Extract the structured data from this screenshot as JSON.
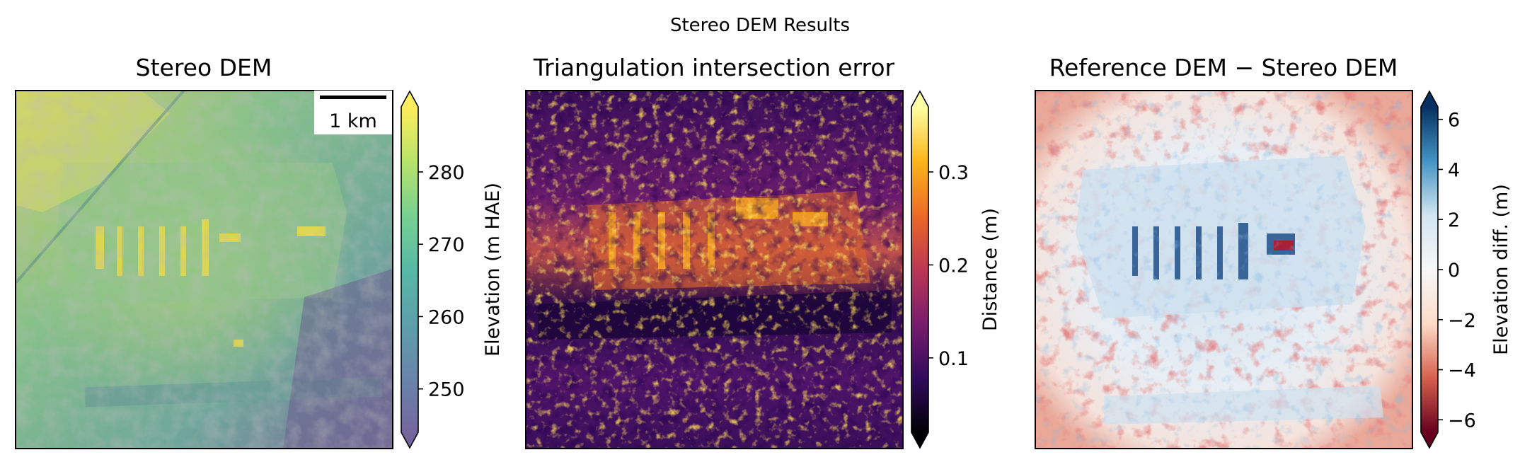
{
  "figure": {
    "suptitle": "Stereo DEM Results"
  },
  "chart_data": [
    {
      "type": "heatmap",
      "title": "Stereo DEM",
      "colormap": "viridis (hillshaded, semi-transparent)",
      "colorbar": {
        "label": "Elevation (m HAE)",
        "ticks": [
          250,
          260,
          270,
          280
        ],
        "range": [
          244,
          289
        ],
        "extend": "both",
        "colors": [
          "#46327e",
          "#365c8d",
          "#277f8e",
          "#1fa187",
          "#4ac16d",
          "#a0da39",
          "#fde725"
        ]
      },
      "scalebar": {
        "label": "1 km",
        "position": "top-right"
      },
      "grid": false
    },
    {
      "type": "heatmap",
      "title": "Triangulation intersection error",
      "colormap": "inferno",
      "colorbar": {
        "label": "Distance (m)",
        "ticks": [
          0.1,
          0.2,
          0.3
        ],
        "tick_labels": [
          "0.1",
          "0.2",
          "0.3"
        ],
        "range": [
          0.02,
          0.37
        ],
        "extend": "both",
        "colors": [
          "#000004",
          "#320a5e",
          "#781c6d",
          "#bc3754",
          "#ed6925",
          "#fbb61a",
          "#fcffa4"
        ]
      },
      "grid": false
    },
    {
      "type": "heatmap",
      "title": "Reference DEM − Stereo DEM",
      "colormap": "RdBu",
      "colorbar": {
        "label": "Elevation diff. (m)",
        "ticks": [
          -6,
          -4,
          -2,
          0,
          2,
          4,
          6
        ],
        "tick_labels": [
          "−6",
          "−4",
          "−2",
          "0",
          "2",
          "4",
          "6"
        ],
        "range": [
          -6.5,
          6.5
        ],
        "extend": "both",
        "colors": [
          "#67001f",
          "#d6604d",
          "#fddbc7",
          "#f7f7f7",
          "#d1e5f0",
          "#4393c3",
          "#053061"
        ]
      },
      "grid": false
    }
  ]
}
